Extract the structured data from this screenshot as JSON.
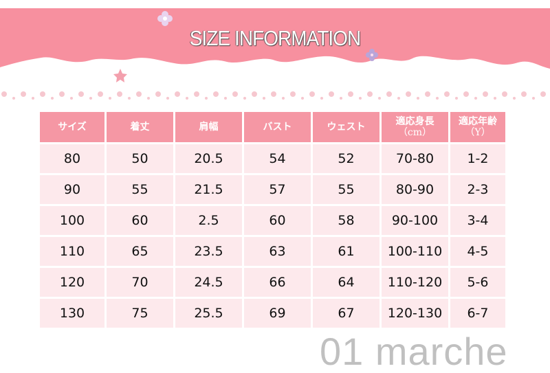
{
  "title": "SIZE INFORMATION",
  "colors": {
    "banner": "#f7909f",
    "header": "#f597a4",
    "cell": "#fde9ec"
  },
  "table": {
    "headers": [
      [
        "サイズ",
        ""
      ],
      [
        "着丈",
        ""
      ],
      [
        "肩幅",
        ""
      ],
      [
        "バスト",
        ""
      ],
      [
        "ウェスト",
        ""
      ],
      [
        "適応身長",
        "（cm）"
      ],
      [
        "適応年齢",
        "（Y）"
      ]
    ],
    "rows": [
      [
        "80",
        "50",
        "20.5",
        "54",
        "52",
        "70-80",
        "1-2"
      ],
      [
        "90",
        "55",
        "21.5",
        "57",
        "55",
        "80-90",
        "2-3"
      ],
      [
        "100",
        "60",
        "2.5",
        "60",
        "58",
        "90-100",
        "3-4"
      ],
      [
        "110",
        "65",
        "23.5",
        "63",
        "61",
        "100-110",
        "4-5"
      ],
      [
        "120",
        "70",
        "24.5",
        "66",
        "64",
        "110-120",
        "5-6"
      ],
      [
        "130",
        "75",
        "25.5",
        "69",
        "67",
        "120-130",
        "6-7"
      ]
    ]
  },
  "watermark": "01 marche"
}
